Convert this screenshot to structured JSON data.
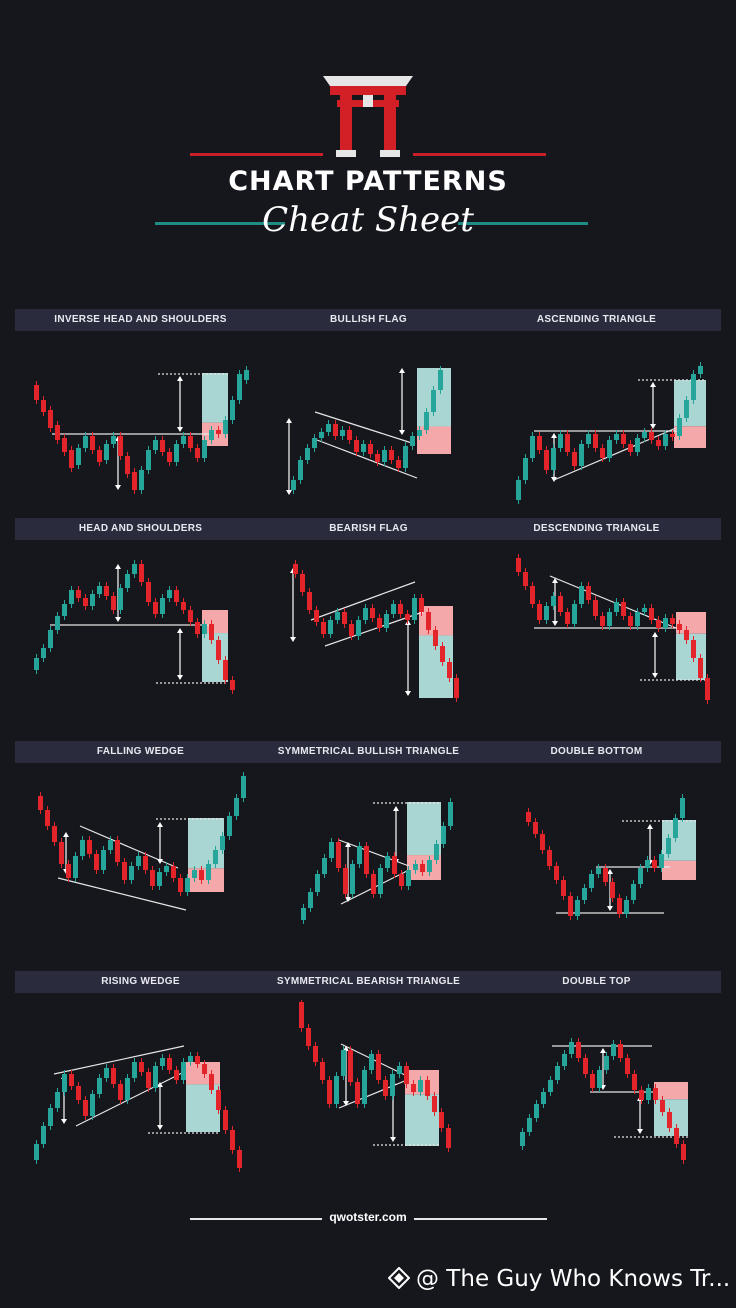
{
  "header": {
    "title": "CHART PATTERNS",
    "subtitle": "Cheat Sheet",
    "logo_icon": "torii-gate-icon"
  },
  "colors": {
    "background": "#16171d",
    "bull": "#26a69a",
    "bear": "#e3242b",
    "band": "#2a2c3d",
    "target_bull": "#a9d6d2",
    "target_bear": "#f4a8aa",
    "teal_line": "#1f8d86",
    "red_line": "#c8202a"
  },
  "patterns": [
    {
      "label": "INVERSE HEAD AND SHOULDERS",
      "bias": "bullish"
    },
    {
      "label": "BULLISH FLAG",
      "bias": "bullish"
    },
    {
      "label": "ASCENDING TRIANGLE",
      "bias": "bullish"
    },
    {
      "label": "HEAD AND SHOULDERS",
      "bias": "bearish"
    },
    {
      "label": "BEARISH FLAG",
      "bias": "bearish"
    },
    {
      "label": "DESCENDING TRIANGLE",
      "bias": "bearish"
    },
    {
      "label": "FALLING WEDGE",
      "bias": "bullish"
    },
    {
      "label": "SYMMETRICAL BULLISH  TRIANGLE",
      "bias": "bullish"
    },
    {
      "label": "DOUBLE BOTTOM",
      "bias": "bullish"
    },
    {
      "label": "RISING WEDGE",
      "bias": "bearish"
    },
    {
      "label": "SYMMETRICAL  BEARISH TRIANGLE",
      "bias": "bearish"
    },
    {
      "label": "DOUBLE  TOP",
      "bias": "bearish"
    }
  ],
  "footer": {
    "site": "qwotster.com"
  },
  "watermark": {
    "text": "@ The Guy Who Knows Tr...",
    "icon": "diamond-logo-icon"
  }
}
